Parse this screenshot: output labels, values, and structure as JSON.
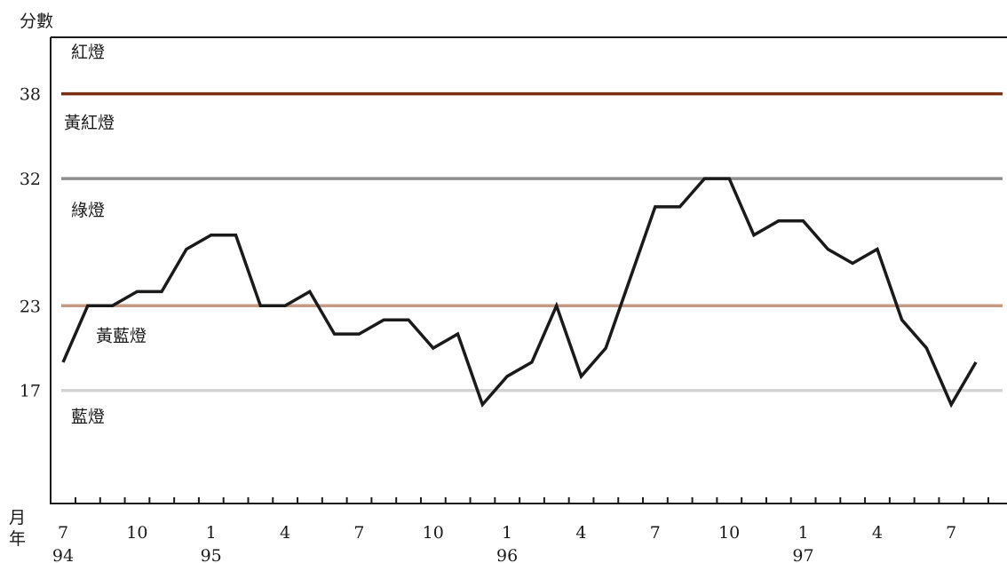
{
  "chart_data": {
    "type": "line",
    "ylabel": "分數",
    "xlabel_month": "月",
    "xlabel_year": "年",
    "ylim": [
      9,
      42
    ],
    "y_ticks": [
      17,
      23,
      32,
      38
    ],
    "x_months_index_range": [
      0,
      37
    ],
    "x_tick_labels": [
      {
        "index": 0,
        "month": "7",
        "year": "94"
      },
      {
        "index": 3,
        "month": "10",
        "year": ""
      },
      {
        "index": 6,
        "month": "1",
        "year": "95"
      },
      {
        "index": 9,
        "month": "4",
        "year": ""
      },
      {
        "index": 12,
        "month": "7",
        "year": ""
      },
      {
        "index": 15,
        "month": "10",
        "year": ""
      },
      {
        "index": 18,
        "month": "1",
        "year": "96"
      },
      {
        "index": 21,
        "month": "4",
        "year": ""
      },
      {
        "index": 24,
        "month": "7",
        "year": ""
      },
      {
        "index": 27,
        "month": "10",
        "year": ""
      },
      {
        "index": 30,
        "month": "1",
        "year": "97"
      },
      {
        "index": 33,
        "month": "4",
        "year": ""
      },
      {
        "index": 36,
        "month": "7",
        "year": ""
      }
    ],
    "thresholds": [
      {
        "value": 38,
        "color": "#7a2e12"
      },
      {
        "value": 32,
        "color": "#8f8f8f"
      },
      {
        "value": 23,
        "color": "#c49a85"
      },
      {
        "value": 17,
        "color": "#d4d4d4"
      }
    ],
    "zones": [
      {
        "label": "紅燈",
        "y_value": 41
      },
      {
        "label": "黃紅燈",
        "y_value": 36
      },
      {
        "label": "綠燈",
        "y_value": 29.8
      },
      {
        "label": "黃藍燈",
        "y_value": 20.9
      },
      {
        "label": "藍燈",
        "y_value": 15.2
      }
    ],
    "series": [
      {
        "color": "#1a1a1a",
        "values": [
          19,
          23,
          23,
          24,
          24,
          27,
          28,
          28,
          23,
          23,
          24,
          21,
          21,
          22,
          22,
          20,
          21,
          16,
          18,
          19,
          23,
          18,
          20,
          25,
          30,
          30,
          32,
          32,
          28,
          29,
          29,
          27,
          26,
          27,
          22,
          20,
          16,
          19
        ]
      }
    ]
  }
}
